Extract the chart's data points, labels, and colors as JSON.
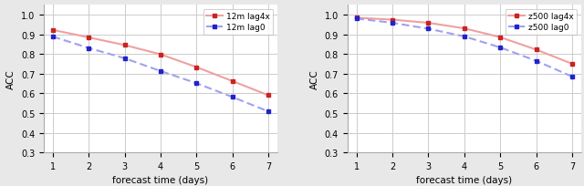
{
  "x": [
    1,
    2,
    3,
    4,
    5,
    6,
    7
  ],
  "left_lag4x": [
    0.922,
    0.884,
    0.845,
    0.798,
    0.733,
    0.662,
    0.59
  ],
  "left_lag0": [
    0.888,
    0.83,
    0.778,
    0.713,
    0.651,
    0.581,
    0.508
  ],
  "right_lag4x": [
    0.984,
    0.974,
    0.958,
    0.93,
    0.885,
    0.822,
    0.75
  ],
  "right_lag0": [
    0.98,
    0.958,
    0.928,
    0.889,
    0.833,
    0.765,
    0.685
  ],
  "left_label_lag4x": "12m lag4x",
  "left_label_lag0": "12m lag0",
  "right_label_lag4x": "z500 lag4x",
  "right_label_lag0": "z500 lag0",
  "ylabel": "ACC",
  "xlabel": "forecast time (days)",
  "ylim": [
    0.3,
    1.05
  ],
  "yticks": [
    0.3,
    0.4,
    0.5,
    0.6,
    0.7,
    0.8,
    0.9,
    1.0
  ],
  "color_red_line": "#f0a0a0",
  "color_red_marker": "#cc2222",
  "color_blue_line": "#a0a0f0",
  "color_blue_marker": "#2222cc",
  "linewidth": 1.5,
  "markersize": 3.5,
  "grid_color": "#cccccc",
  "bg_color": "#ffffff",
  "fig_bg": "#e8e8e8"
}
